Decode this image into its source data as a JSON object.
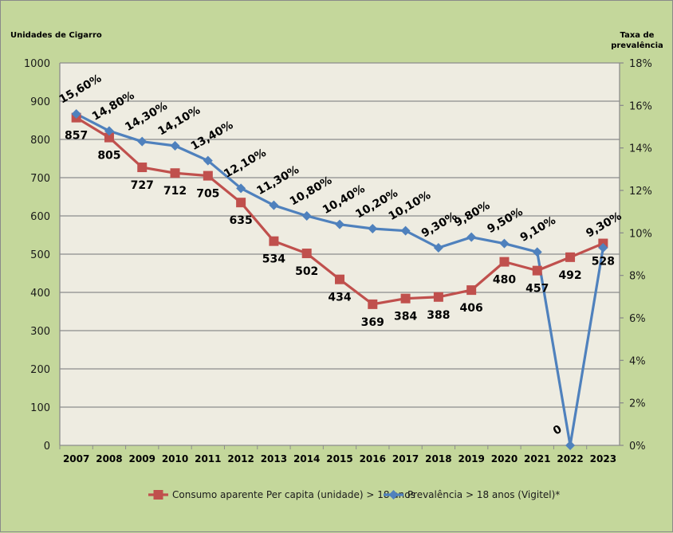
{
  "chart_data": {
    "type": "line",
    "ylabel_left": "Unidades de Cigarro",
    "ylabel_right_line1": "Taxa de",
    "ylabel_right_line2": "prevalência",
    "categories": [
      "2007",
      "2008",
      "2009",
      "2010",
      "2011",
      "2012",
      "2013",
      "2014",
      "2015",
      "2016",
      "2017",
      "2018",
      "2019",
      "2020",
      "2021",
      "2022",
      "2023"
    ],
    "y_left": {
      "range": [
        0,
        1000
      ],
      "ticks": [
        0,
        100,
        200,
        300,
        400,
        500,
        600,
        700,
        800,
        900,
        1000
      ]
    },
    "y_right": {
      "range": [
        0,
        18
      ],
      "ticks": [
        "0%",
        "2%",
        "4%",
        "6%",
        "8%",
        "10%",
        "12%",
        "14%",
        "16%",
        "18%"
      ]
    },
    "grid": true,
    "legend_position": "bottom",
    "series": [
      {
        "name": "Consumo aparente Per capita (unidade) > 18 anos",
        "axis": "left",
        "color": "#c0504d",
        "marker": "square",
        "values": [
          857,
          805,
          727,
          712,
          705,
          635,
          534,
          502,
          434,
          369,
          384,
          388,
          406,
          480,
          457,
          492,
          528
        ],
        "labels": [
          "857",
          "805",
          "727",
          "712",
          "705",
          "635",
          "534",
          "502",
          "434",
          "369",
          "384",
          "388",
          "406",
          "480",
          "457",
          "492",
          "528"
        ]
      },
      {
        "name": "Prevalência > 18 anos (Vigitel)*",
        "axis": "right",
        "color": "#4f81bd",
        "marker": "diamond",
        "values": [
          15.6,
          14.8,
          14.3,
          14.1,
          13.4,
          12.1,
          11.3,
          10.8,
          10.4,
          10.2,
          10.1,
          9.3,
          9.8,
          9.5,
          9.1,
          0,
          9.3
        ],
        "labels": [
          "15,60%",
          "14,80%",
          "14,30%",
          "14,10%",
          "13,40%",
          "12,10%",
          "11,30%",
          "10,80%",
          "10,40%",
          "10,20%",
          "10,10%",
          "9,30%",
          "9,80%",
          "9,50%",
          "9,10%",
          "0",
          "9,30%"
        ]
      }
    ]
  }
}
